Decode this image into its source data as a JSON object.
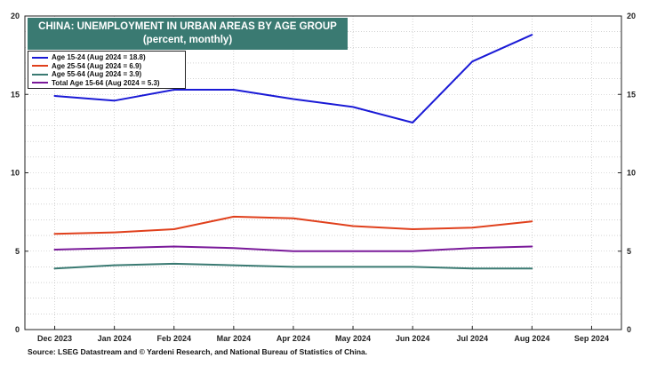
{
  "chart_data": {
    "type": "line",
    "title": "CHINA: UNEMPLOYMENT IN URBAN AREAS BY AGE GROUP",
    "subtitle": "(percent, monthly)",
    "x_categories": [
      "Dec 2023",
      "Jan 2024",
      "Feb 2024",
      "Mar 2024",
      "Apr 2024",
      "May 2024",
      "Jun 2024",
      "Jul 2024",
      "Aug 2024",
      "Sep 2024"
    ],
    "ylim": [
      0,
      20
    ],
    "yticks": [
      "0",
      "5",
      "10",
      "15",
      "20"
    ],
    "grid": true,
    "legend_position": "top-left",
    "series": [
      {
        "name": "Age 15-24 (Aug 2024 = 18.8)",
        "color": "#1a1ad6",
        "values": [
          14.9,
          14.6,
          15.3,
          15.3,
          14.7,
          14.2,
          13.2,
          17.1,
          18.8
        ]
      },
      {
        "name": "Age 25-54 (Aug 2024 = 6.9)",
        "color": "#e0401c",
        "values": [
          6.1,
          6.2,
          6.4,
          7.2,
          7.1,
          6.6,
          6.4,
          6.5,
          6.9
        ]
      },
      {
        "name": "Age 55-64 (Aug 2024 = 3.9)",
        "color": "#3a7a72",
        "values": [
          3.9,
          4.1,
          4.2,
          4.1,
          4.0,
          4.0,
          4.0,
          3.9,
          3.9
        ]
      },
      {
        "name": "Total Age 15-64 (Aug 2024 = 5.3)",
        "color": "#7a1a9a",
        "values": [
          5.1,
          5.2,
          5.3,
          5.2,
          5.0,
          5.0,
          5.0,
          5.2,
          5.3
        ]
      }
    ],
    "source": "Source: LSEG Datastream and © Yardeni Research, and National Bureau of Statistics of China."
  }
}
